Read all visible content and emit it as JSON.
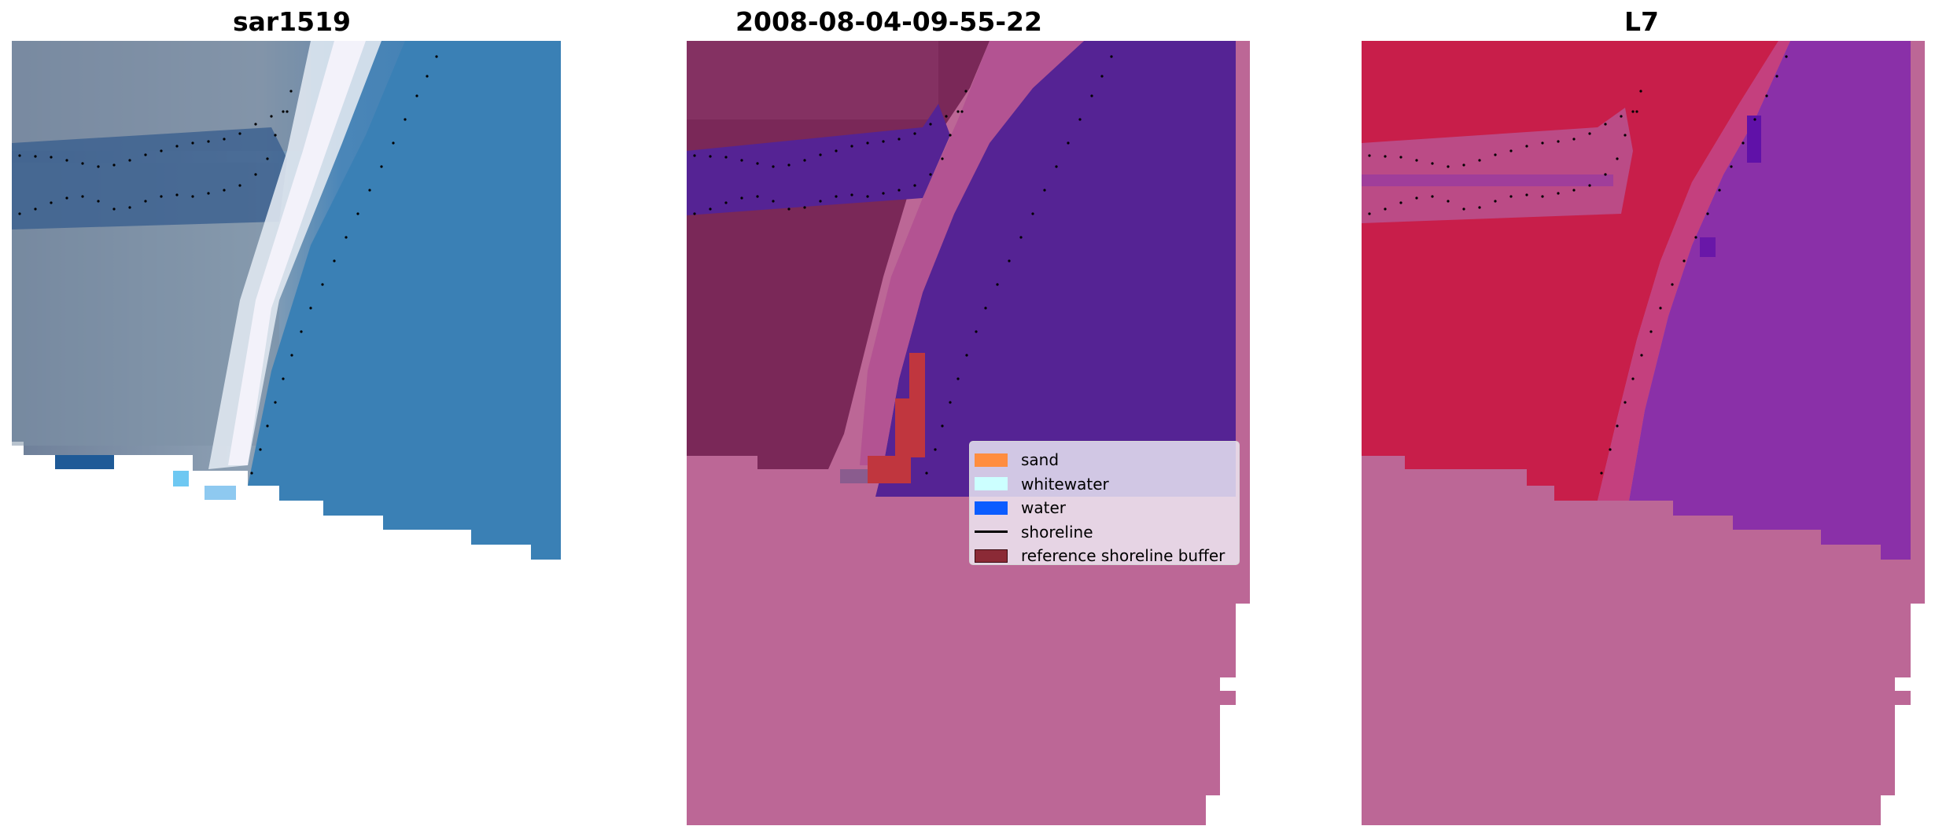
{
  "panels": [
    {
      "title": "sar1519"
    },
    {
      "title": "2008-08-04-09-55-22"
    },
    {
      "title": "L7"
    }
  ],
  "legend": {
    "items": [
      {
        "label": "sand",
        "color": "#ff8d3f",
        "kind": "patch"
      },
      {
        "label": "whitewater",
        "color": "#ccffff",
        "kind": "patch"
      },
      {
        "label": "water",
        "color": "#0b5cff",
        "kind": "patch"
      },
      {
        "label": "shoreline",
        "color": "#000000",
        "kind": "line"
      },
      {
        "label": "reference shoreline buffer",
        "color": "#8b2a36",
        "kind": "patch"
      }
    ]
  },
  "colors": {
    "nodata": "#bc6796",
    "water_class": "#552394",
    "sand_class": "#7a2858",
    "buffer": "#c0363e",
    "land_prob": "#c81e4a",
    "water_prob": "#8a30a8",
    "rgb_water": "#3d7aad",
    "rgb_land": "#6e8497",
    "rgb_white": "#eef2f6"
  }
}
